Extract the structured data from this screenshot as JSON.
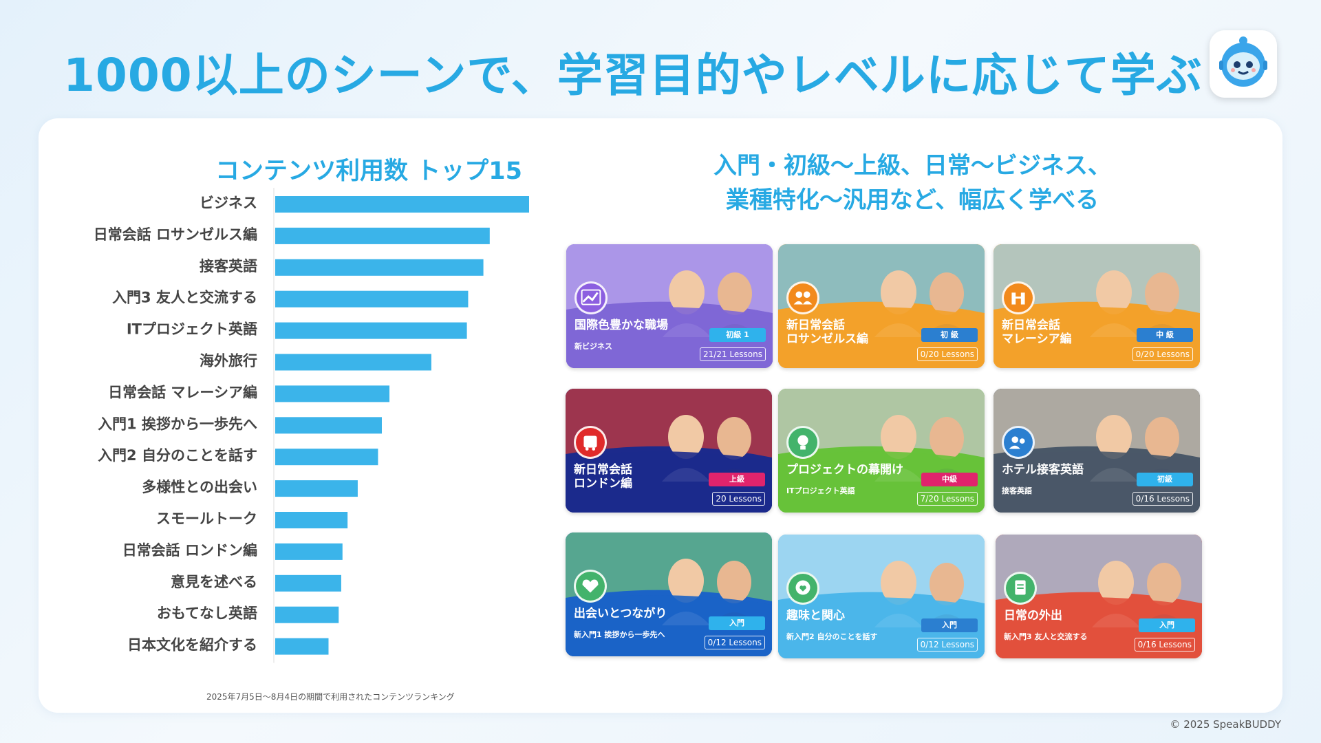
{
  "title": "1000以上のシーンで、学習目的やレベルに応じて学ぶ",
  "chart_data": {
    "type": "bar",
    "orientation": "horizontal",
    "title": "コンテンツ利用数 トップ15",
    "categories": [
      "ビジネス",
      "日常会話 ロサンゼルス編",
      "接客英語",
      "入門3 友人と交流する",
      "ITプロジェクト英語",
      "海外旅行",
      "日常会話 マレーシア編",
      "入門1 挨拶から一歩先へ",
      "入門2 自分のことを話す",
      "多様性との出会い",
      "スモールトーク",
      "日常会話 ロンドン編",
      "意見を述べる",
      "おもてなし英語",
      "日本文化を紹介する"
    ],
    "values": [
      100,
      84.5,
      82,
      76,
      75.5,
      61.5,
      45,
      42,
      40.5,
      32.5,
      28.5,
      26.5,
      26,
      25,
      21
    ],
    "color": "#3bb4ea",
    "note": "2025年7月5日〜8月4日の期間で利用されたコンテンツランキング"
  },
  "right": {
    "heading_line1": "入門・初級〜上級、日常〜ビジネス、",
    "heading_line2": "業種特化〜汎用など、幅広く学べる"
  },
  "courses": [
    {
      "title": "国際色豊かな職場",
      "subtitle": "新ビジネス",
      "level": "初級 1",
      "lessons": "21/21 Lessons",
      "bg": "#7f67d6",
      "bg2": "#b9a6ee",
      "level_color": "#2fb2ec",
      "icon": "chart-icon"
    },
    {
      "title": "新日常会話\nロサンゼルス編",
      "subtitle": "",
      "level": "初 級",
      "lessons": "0/20 Lessons",
      "bg": "#f3a12a",
      "bg2": "#6cc6ef",
      "level_color": "#2b7fd0",
      "icon": "people-icon"
    },
    {
      "title": "新日常会話\nマレーシア編",
      "subtitle": "",
      "level": "中 級",
      "lessons": "0/20 Lessons",
      "bg": "#f3a12a",
      "bg2": "#9fd2ee",
      "level_color": "#2b7fd0",
      "icon": "tower-icon"
    },
    {
      "title": "新日常会話\nロンドン編",
      "subtitle": "",
      "level": "上級",
      "lessons": "20 Lessons",
      "bg": "#1c2a8c",
      "bg2": "#c83a3a",
      "level_color": "#e0246c",
      "icon": "bus-icon"
    },
    {
      "title": "プロジェクトの幕開け",
      "subtitle": "ITプロジェクト英語",
      "level": "中級",
      "lessons": "7/20 Lessons",
      "bg": "#67c23a",
      "bg2": "#c7c7c7",
      "level_color": "#e0246c",
      "icon": "bulb-icon"
    },
    {
      "title": "ホテル接客英語",
      "subtitle": "接客英語",
      "level": "初級",
      "lessons": "0/16 Lessons",
      "bg": "#4a5868",
      "bg2": "#cfc4b4",
      "level_color": "#2fb2ec",
      "icon": "service-icon"
    },
    {
      "title": "出会いとつながり",
      "subtitle": "新入門1 挨拶から一歩先へ",
      "level": "入門",
      "lessons": "0/12 Lessons",
      "bg": "#1b63c7",
      "bg2": "#6bbc7d",
      "level_color": "#2fb2ec",
      "icon": "heart-icon"
    },
    {
      "title": "趣味と関心",
      "subtitle": "新入門2 自分のことを話す",
      "level": "入門",
      "lessons": "0/12 Lessons",
      "bg": "#4bb6ea",
      "bg2": "#b7dff3",
      "level_color": "#2b7fd0",
      "icon": "chat-icon"
    },
    {
      "title": "日常の外出",
      "subtitle": "新入門3 友人と交流する",
      "level": "入門",
      "lessons": "0/16 Lessons",
      "bg": "#e2503c",
      "bg2": "#9dc7e6",
      "level_color": "#2fb2ec",
      "icon": "note-icon"
    }
  ],
  "footer": "© 2025 SpeakBUDDY"
}
